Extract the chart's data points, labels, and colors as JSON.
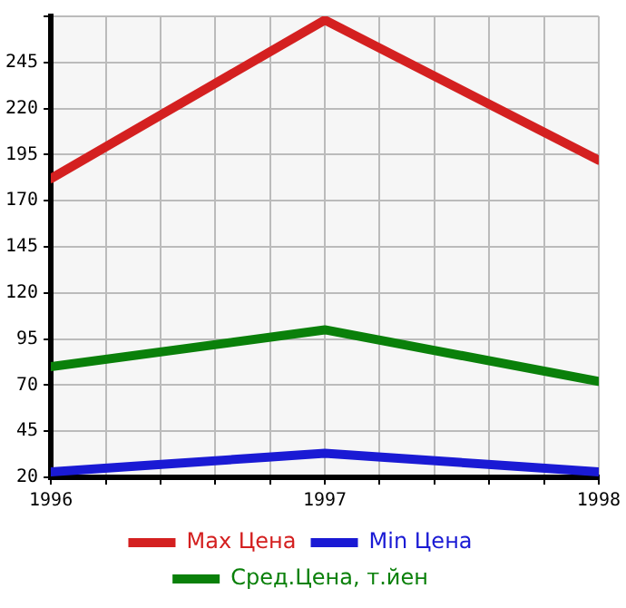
{
  "chart_data": {
    "type": "line",
    "x": [
      1996,
      1997,
      1998
    ],
    "series": [
      {
        "name": "Max Цена",
        "color": "#d42020",
        "values": [
          182,
          268,
          192
        ]
      },
      {
        "name": "Min Цена",
        "color": "#1a1ad4",
        "values": [
          23,
          33,
          23
        ]
      },
      {
        "name": "Сред.Цена, т.йен",
        "color": "#0a800a",
        "values": [
          80,
          100,
          72
        ]
      }
    ],
    "xlim": [
      1996,
      1998
    ],
    "xticks": [
      1996,
      {
        "value": 1996.2,
        "label": null
      },
      {
        "value": 1996.4,
        "label": null
      },
      {
        "value": 1996.6,
        "label": null
      },
      {
        "value": 1996.8,
        "label": null
      },
      1997,
      {
        "value": 1997.2,
        "label": null
      },
      {
        "value": 1997.4,
        "label": null
      },
      {
        "value": 1997.6,
        "label": null
      },
      {
        "value": 1997.8,
        "label": null
      },
      1998
    ],
    "ylim": [
      20,
      270
    ],
    "yticks": [
      20,
      45,
      70,
      95,
      120,
      145,
      170,
      195,
      220,
      245,
      {
        "value": 270,
        "label": null
      }
    ],
    "grid": true,
    "legend": "bottom",
    "marker": "none",
    "line_style": "solid"
  }
}
